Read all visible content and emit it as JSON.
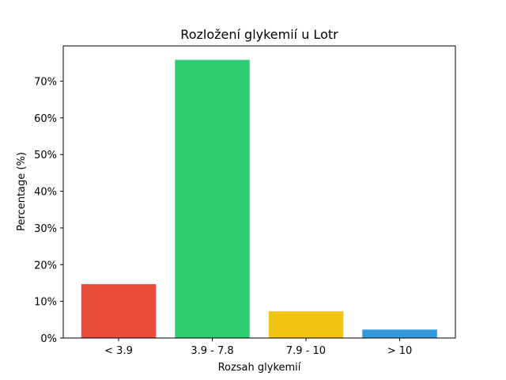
{
  "chart_data": {
    "type": "bar",
    "title": "Rozložení glykemií u  Lotr",
    "xlabel": "Rozsah glykemií",
    "ylabel": "Percentage (%)",
    "categories": [
      "< 3.9",
      "3.9 - 7.8",
      "7.9 - 10",
      "> 10"
    ],
    "values": [
      14.7,
      75.8,
      7.3,
      2.3
    ],
    "colors": [
      "#e74c3c",
      "#2ecc71",
      "#f1c40f",
      "#3498db"
    ],
    "ylim": [
      0,
      79.6
    ],
    "yticks": [
      0,
      10,
      20,
      30,
      40,
      50,
      60,
      70
    ],
    "ytick_suffix": "%",
    "grid": false,
    "legend": "none"
  }
}
